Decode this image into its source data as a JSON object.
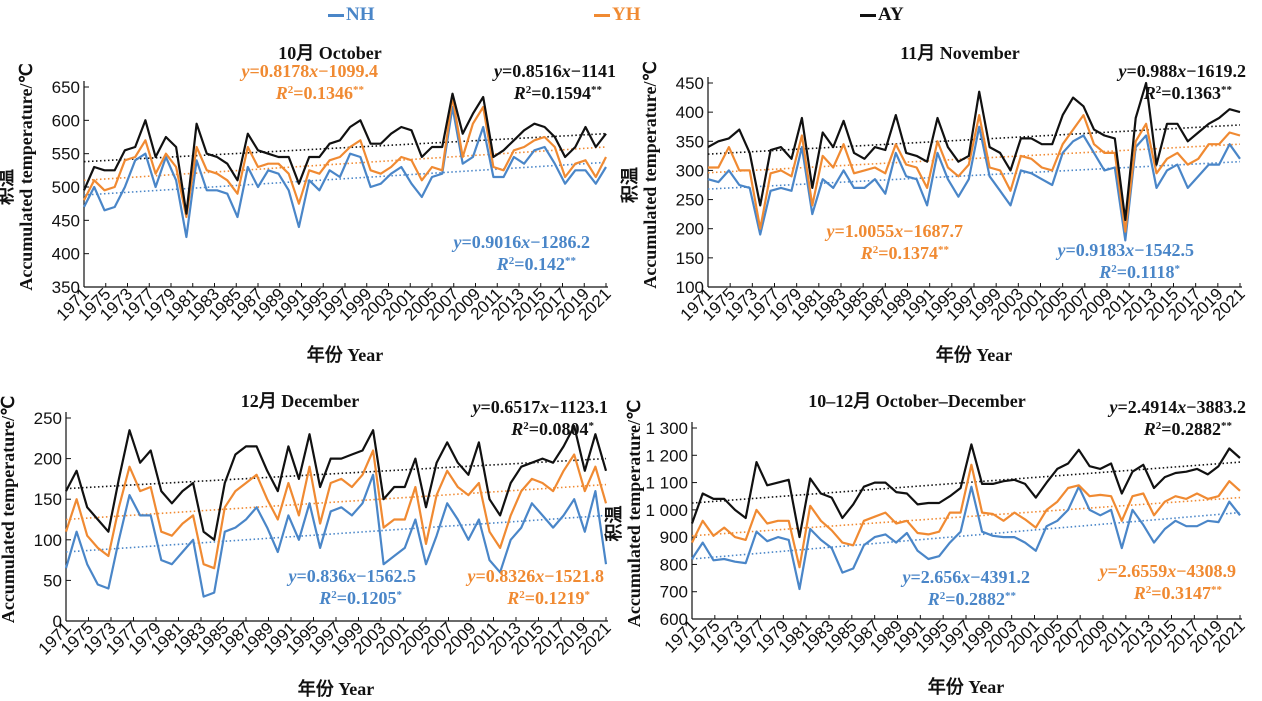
{
  "legend": [
    {
      "name": "NH",
      "color": "#4a86c8"
    },
    {
      "name": "YH",
      "color": "#f08a32"
    },
    {
      "name": "AY",
      "color": "#111111"
    }
  ],
  "chart_data": [
    {
      "type": "line",
      "title": "10月 October",
      "xlabel": "年份 Year",
      "ylabel": "积温 Accumulated temperature/℃",
      "ylim": [
        350,
        650
      ],
      "yticks": [
        "350",
        "400",
        "450",
        "500",
        "550",
        "600",
        "650"
      ],
      "xticks": [
        "1971",
        "1975",
        "1973",
        "1977",
        "1979",
        "1981",
        "1983",
        "1985",
        "1987",
        "1989",
        "1991",
        "1995",
        "1997",
        "1999",
        "2003",
        "2001",
        "2005",
        "2007",
        "2009",
        "2011",
        "2013",
        "2015",
        "2017",
        "2019",
        "2021"
      ],
      "series": [
        {
          "name": "NH",
          "values": [
            470,
            500,
            465,
            470,
            500,
            540,
            550,
            500,
            545,
            510,
            425,
            540,
            495,
            495,
            490,
            455,
            530,
            500,
            525,
            520,
            495,
            440,
            510,
            495,
            525,
            515,
            550,
            545,
            500,
            505,
            520,
            530,
            505,
            485,
            515,
            520,
            620,
            535,
            545,
            590,
            515,
            515,
            545,
            535,
            555,
            560,
            535,
            505,
            525,
            525,
            505,
            530
          ]
        },
        {
          "name": "YH",
          "values": [
            480,
            510,
            495,
            500,
            540,
            545,
            570,
            520,
            550,
            530,
            455,
            560,
            525,
            520,
            510,
            490,
            560,
            530,
            535,
            535,
            520,
            475,
            525,
            520,
            540,
            545,
            560,
            570,
            525,
            520,
            530,
            545,
            540,
            510,
            530,
            525,
            635,
            545,
            595,
            620,
            530,
            525,
            555,
            560,
            570,
            575,
            560,
            515,
            535,
            540,
            515,
            545
          ]
        },
        {
          "name": "AY",
          "values": [
            495,
            530,
            525,
            525,
            555,
            560,
            600,
            545,
            575,
            560,
            460,
            595,
            550,
            545,
            535,
            510,
            580,
            555,
            550,
            545,
            545,
            505,
            545,
            545,
            565,
            570,
            590,
            600,
            565,
            565,
            580,
            590,
            585,
            545,
            560,
            560,
            640,
            580,
            610,
            635,
            545,
            555,
            570,
            585,
            595,
            590,
            575,
            545,
            560,
            590,
            560,
            580
          ]
        }
      ],
      "trendlines": [
        {
          "series": "NH",
          "equation": "y=0.9016x−1286.2",
          "r2": "R²=0.142**"
        },
        {
          "series": "YH",
          "equation": "y=0.8178x−1099.4",
          "r2": "R²=0.1346**"
        },
        {
          "series": "AY",
          "equation": "y=0.8516x−1141",
          "r2": "R²=0.1594**"
        }
      ],
      "trend_ranges": {
        "NH": [
          488,
          537
        ],
        "YH": [
          510,
          560
        ],
        "AY": [
          538,
          580
        ]
      }
    },
    {
      "type": "line",
      "title": "11月 November",
      "xlabel": "年份 Year",
      "ylabel": "积温 Accumulated temperature/℃",
      "ylim": [
        100,
        450
      ],
      "yticks": [
        "100",
        "150",
        "200",
        "250",
        "300",
        "350",
        "400",
        "450"
      ],
      "xticks": [
        "1971",
        "1975",
        "1973",
        "1977",
        "1979",
        "1981",
        "1983",
        "1985",
        "1987",
        "1989",
        "1991",
        "1995",
        "1997",
        "1999",
        "2003",
        "2001",
        "2005",
        "2007",
        "2009",
        "2011",
        "2013",
        "2015",
        "2017",
        "2019",
        "2021"
      ],
      "series": [
        {
          "name": "NH",
          "values": [
            285,
            280,
            300,
            275,
            270,
            190,
            265,
            270,
            265,
            340,
            225,
            285,
            270,
            300,
            270,
            270,
            285,
            260,
            330,
            290,
            285,
            240,
            330,
            285,
            255,
            285,
            375,
            290,
            265,
            240,
            300,
            295,
            285,
            275,
            330,
            350,
            360,
            330,
            300,
            305,
            180,
            340,
            360,
            270,
            300,
            310,
            270,
            290,
            310,
            310,
            345,
            320
          ]
        },
        {
          "name": "YH",
          "values": [
            305,
            305,
            340,
            300,
            300,
            200,
            295,
            300,
            290,
            360,
            240,
            325,
            305,
            345,
            295,
            300,
            305,
            295,
            345,
            310,
            305,
            270,
            350,
            305,
            290,
            310,
            395,
            305,
            300,
            265,
            325,
            320,
            305,
            300,
            345,
            370,
            395,
            345,
            330,
            330,
            195,
            350,
            380,
            295,
            320,
            330,
            310,
            320,
            345,
            345,
            365,
            360
          ]
        },
        {
          "name": "AY",
          "values": [
            340,
            350,
            355,
            370,
            330,
            240,
            335,
            340,
            320,
            390,
            270,
            365,
            340,
            385,
            330,
            320,
            340,
            335,
            395,
            330,
            325,
            315,
            390,
            340,
            315,
            325,
            435,
            340,
            330,
            300,
            355,
            355,
            345,
            345,
            395,
            425,
            410,
            370,
            360,
            355,
            215,
            390,
            450,
            310,
            380,
            380,
            350,
            365,
            380,
            390,
            405,
            400
          ]
        }
      ],
      "trendlines": [
        {
          "series": "NH",
          "equation": "y=0.9183x−1542.5",
          "r2": "R²=0.1118*"
        },
        {
          "series": "YH",
          "equation": "y=1.0055x−1687.7",
          "r2": "R²=0.1374**"
        },
        {
          "series": "AY",
          "equation": "y=0.988x−1619.2",
          "r2": "R²=0.1363**"
        }
      ],
      "trend_ranges": {
        "NH": [
          268,
          315
        ],
        "YH": [
          296,
          345
        ],
        "AY": [
          328,
          378
        ]
      }
    },
    {
      "type": "line",
      "title": "12月 December",
      "xlabel": "年份 Year",
      "ylabel": "积温 Accumulated temperature/℃",
      "ylim": [
        0,
        250
      ],
      "yticks": [
        "0",
        "50",
        "100",
        "150",
        "200",
        "250"
      ],
      "xticks": [
        "1971",
        "1975",
        "1973",
        "1977",
        "1979",
        "1981",
        "1983",
        "1985",
        "1987",
        "1989",
        "1991",
        "1995",
        "1997",
        "1999",
        "2003",
        "2001",
        "2005",
        "2007",
        "2009",
        "2011",
        "2013",
        "2015",
        "2017",
        "2019",
        "2021"
      ],
      "series": [
        {
          "name": "NH",
          "values": [
            65,
            110,
            70,
            45,
            40,
            100,
            155,
            130,
            130,
            75,
            70,
            85,
            100,
            30,
            35,
            110,
            115,
            125,
            140,
            115,
            85,
            130,
            100,
            145,
            90,
            135,
            140,
            130,
            145,
            180,
            70,
            80,
            90,
            125,
            70,
            105,
            145,
            125,
            100,
            125,
            75,
            60,
            100,
            115,
            145,
            130,
            115,
            130,
            150,
            110,
            160,
            70
          ]
        },
        {
          "name": "YH",
          "values": [
            110,
            150,
            105,
            90,
            80,
            140,
            190,
            160,
            165,
            110,
            105,
            120,
            130,
            70,
            65,
            140,
            160,
            170,
            180,
            150,
            125,
            170,
            130,
            190,
            120,
            170,
            175,
            165,
            180,
            210,
            115,
            125,
            125,
            165,
            95,
            155,
            185,
            165,
            155,
            170,
            110,
            90,
            130,
            160,
            175,
            170,
            160,
            185,
            205,
            160,
            190,
            145
          ]
        },
        {
          "name": "AY",
          "values": [
            160,
            185,
            140,
            125,
            110,
            175,
            235,
            195,
            210,
            160,
            145,
            160,
            170,
            110,
            100,
            170,
            205,
            215,
            215,
            185,
            160,
            215,
            175,
            230,
            165,
            200,
            200,
            205,
            210,
            235,
            150,
            165,
            165,
            200,
            140,
            195,
            220,
            195,
            180,
            220,
            150,
            130,
            170,
            190,
            195,
            200,
            195,
            215,
            240,
            185,
            230,
            185
          ]
        }
      ],
      "trendlines": [
        {
          "series": "NH",
          "equation": "y=0.836x−1562.5",
          "r2": "R²=0.1205*"
        },
        {
          "series": "YH",
          "equation": "y=0.8326x−1521.8",
          "r2": "R²=0.1219*"
        },
        {
          "series": "AY",
          "equation": "y=0.6517x−1123.1",
          "r2": "R²=0.0804*"
        }
      ],
      "trend_ranges": {
        "NH": [
          85,
          130
        ],
        "YH": [
          125,
          168
        ],
        "AY": [
          163,
          200
        ]
      }
    },
    {
      "type": "line",
      "title": "10–12月 October–December",
      "xlabel": "年份 Year",
      "ylabel": "积温 Accumulated temperature/℃",
      "ylim": [
        600,
        1300
      ],
      "yticks": [
        "600",
        "700",
        "800",
        "900",
        "1 000",
        "1 100",
        "1 200",
        "1 300"
      ],
      "xticks": [
        "1971",
        "1975",
        "1973",
        "1977",
        "1979",
        "1981",
        "1983",
        "1985",
        "1987",
        "1989",
        "1991",
        "1995",
        "1997",
        "1999",
        "2003",
        "2001",
        "2005",
        "2007",
        "2009",
        "2011",
        "2013",
        "2015",
        "2017",
        "2019",
        "2021"
      ],
      "series": [
        {
          "name": "NH",
          "values": [
            820,
            880,
            815,
            820,
            810,
            805,
            920,
            885,
            900,
            890,
            710,
            930,
            890,
            860,
            770,
            785,
            870,
            900,
            910,
            880,
            915,
            850,
            820,
            830,
            880,
            920,
            1085,
            920,
            905,
            900,
            900,
            880,
            850,
            940,
            960,
            1000,
            1085,
            1000,
            980,
            1000,
            860,
            1000,
            945,
            880,
            930,
            960,
            940,
            940,
            960,
            955,
            1030,
            980
          ]
        },
        {
          "name": "YH",
          "values": [
            880,
            960,
            905,
            935,
            900,
            890,
            1000,
            950,
            960,
            960,
            790,
            1015,
            960,
            925,
            880,
            870,
            960,
            975,
            990,
            950,
            960,
            915,
            910,
            920,
            990,
            990,
            1165,
            990,
            985,
            960,
            990,
            965,
            935,
            1000,
            1030,
            1080,
            1090,
            1050,
            1055,
            1050,
            960,
            1050,
            1060,
            980,
            1030,
            1050,
            1040,
            1060,
            1040,
            1050,
            1105,
            1070
          ]
        },
        {
          "name": "AY",
          "values": [
            950,
            1060,
            1040,
            1040,
            1000,
            970,
            1175,
            1090,
            1100,
            1110,
            900,
            1115,
            1060,
            1045,
            970,
            1020,
            1085,
            1100,
            1100,
            1065,
            1060,
            1020,
            1025,
            1025,
            1050,
            1080,
            1240,
            1095,
            1095,
            1105,
            1110,
            1095,
            1045,
            1100,
            1150,
            1170,
            1220,
            1160,
            1150,
            1170,
            1060,
            1140,
            1165,
            1080,
            1120,
            1135,
            1140,
            1150,
            1130,
            1160,
            1225,
            1190
          ]
        }
      ],
      "trendlines": [
        {
          "series": "NH",
          "equation": "y=2.656x−4391.2",
          "r2": "R²=0.2882**"
        },
        {
          "series": "YH",
          "equation": "y=2.6559x−4308.9",
          "r2": "R²=0.3147**"
        },
        {
          "series": "AY",
          "equation": "y=2.4914x−3883.2",
          "r2": "R²=0.2882**"
        }
      ],
      "trend_ranges": {
        "NH": [
          820,
          990
        ],
        "YH": [
          905,
          1045
        ],
        "AY": [
          1025,
          1175
        ]
      }
    }
  ]
}
